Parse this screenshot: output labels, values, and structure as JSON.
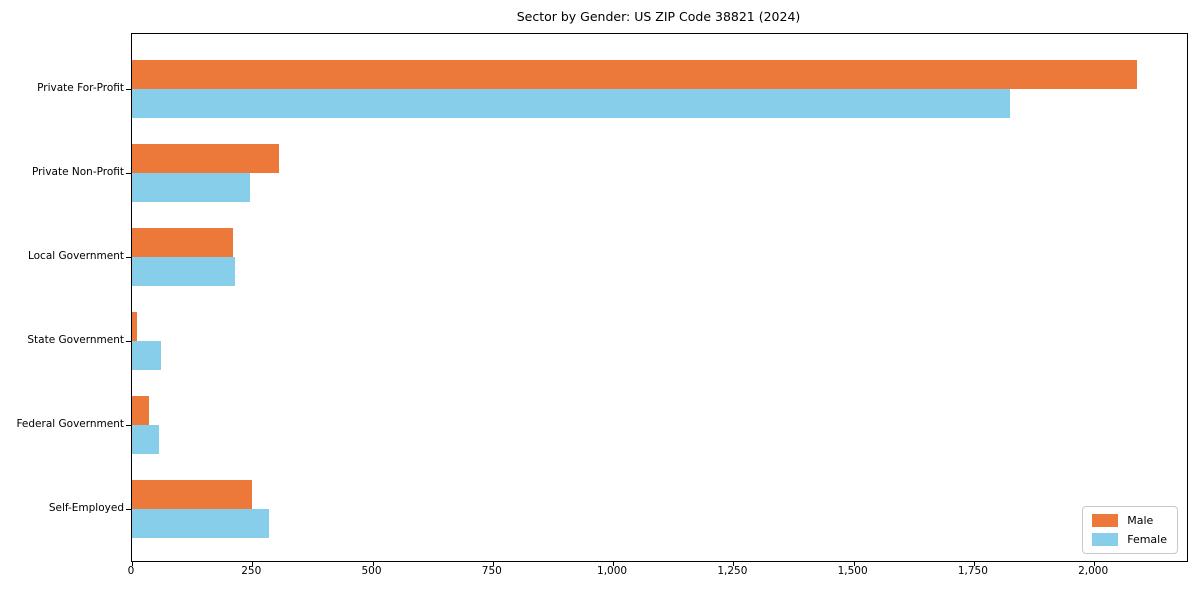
{
  "title": "Sector by Gender: US ZIP Code 38821 (2024)",
  "chart_data": {
    "type": "bar",
    "orientation": "horizontal",
    "title": "Sector by Gender: US ZIP Code 38821 (2024)",
    "categories": [
      "Private For-Profit",
      "Private Non-Profit",
      "Local Government",
      "State Government",
      "Federal Government",
      "Self-Employed"
    ],
    "series": [
      {
        "name": "Male",
        "color": "#ec783a",
        "values": [
          2090,
          305,
          210,
          10,
          35,
          250
        ]
      },
      {
        "name": "Female",
        "color": "#87ceeb",
        "values": [
          1825,
          245,
          215,
          60,
          55,
          285
        ]
      }
    ],
    "xlabel": "",
    "ylabel": "",
    "xlim": [
      0,
      2193
    ],
    "xticks": [
      0,
      250,
      500,
      750,
      1000,
      1250,
      1500,
      1750,
      2000
    ],
    "xtick_labels": [
      "0",
      "250",
      "500",
      "750",
      "1,000",
      "1,250",
      "1,500",
      "1,750",
      "2,000"
    ],
    "grid": false,
    "legend_position": "lower right"
  },
  "legend": {
    "items": [
      {
        "label": "Male",
        "color": "#ec783a"
      },
      {
        "label": "Female",
        "color": "#87ceeb"
      }
    ]
  }
}
